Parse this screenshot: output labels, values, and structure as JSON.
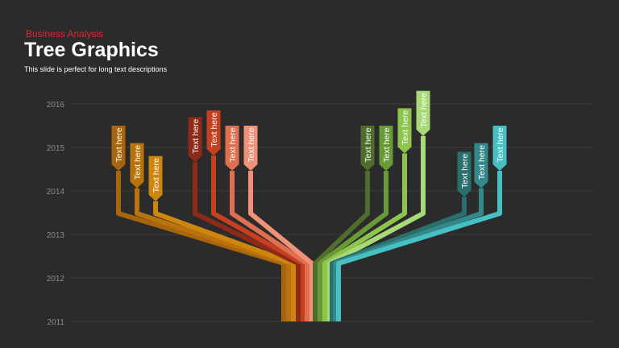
{
  "header": {
    "category": "Business Analysis",
    "title": "Tree Graphics",
    "description": "This slide is perfect for long text descriptions"
  },
  "axis": {
    "years": [
      "2016",
      "2015",
      "2014",
      "2013",
      "2012",
      "2011"
    ]
  },
  "colors": {
    "background": "#2b2b2b",
    "category": "#e0282e",
    "grid": "#3d3d3d"
  },
  "branches": [
    {
      "label": "Text here",
      "color": "#a8650b",
      "value": 2015.5
    },
    {
      "label": "Text here",
      "color": "#b8730c",
      "value": 2015.1
    },
    {
      "label": "Text here",
      "color": "#cf860f",
      "value": 2014.8
    },
    {
      "label": "Text here",
      "color": "#8e2a18",
      "value": 2015.7
    },
    {
      "label": "Text here",
      "color": "#c6401f",
      "value": 2015.85
    },
    {
      "label": "Text here",
      "color": "#e06f4f",
      "value": 2015.5
    },
    {
      "label": "Text here",
      "color": "#f0927a",
      "value": 2015.5
    },
    {
      "label": "Text here",
      "color": "#4f6e2b",
      "value": 2015.5
    },
    {
      "label": "Text here",
      "color": "#6a9a36",
      "value": 2015.5
    },
    {
      "label": "Text here",
      "color": "#8cc44c",
      "value": 2015.9
    },
    {
      "label": "Text here",
      "color": "#a8d977",
      "value": 2016.3
    },
    {
      "label": "Text here",
      "color": "#2a6e6e",
      "value": 2014.9
    },
    {
      "label": "Text here",
      "color": "#33898a",
      "value": 2015.1
    },
    {
      "label": "Text here",
      "color": "#47c0c4",
      "value": 2015.5
    }
  ]
}
